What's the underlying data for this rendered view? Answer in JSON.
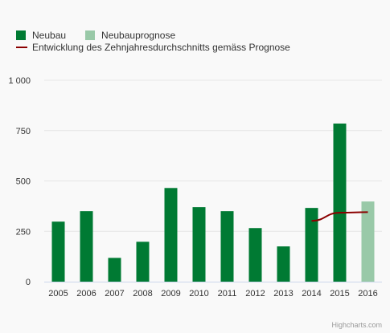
{
  "legend": {
    "neubau": "Neubau",
    "prognose": "Neubauprognose",
    "trend": "Entwicklung des Zehnjahresdurchschnitts gemäss Prognose"
  },
  "credits": "Highcharts.com",
  "colors": {
    "bar": "#007a33",
    "forecast": "#99c9a8",
    "trend": "#8b0000",
    "grid": "#e6e6e6",
    "axis_text": "#333333"
  },
  "chart_data": {
    "type": "bar",
    "categories": [
      "2005",
      "2006",
      "2007",
      "2008",
      "2009",
      "2010",
      "2011",
      "2012",
      "2013",
      "2014",
      "2015",
      "2016"
    ],
    "series": [
      {
        "name": "Neubau",
        "type": "bar",
        "values": [
          298,
          350,
          118,
          198,
          465,
          370,
          350,
          266,
          175,
          366,
          785,
          null
        ]
      },
      {
        "name": "Neubauprognose",
        "type": "bar",
        "values": [
          null,
          null,
          null,
          null,
          null,
          null,
          null,
          null,
          null,
          null,
          null,
          398
        ]
      },
      {
        "name": "Entwicklung des Zehnjahresdurchschnitts gemäss Prognose",
        "type": "line",
        "values": [
          null,
          null,
          null,
          null,
          null,
          null,
          null,
          null,
          null,
          302,
          342,
          345
        ]
      }
    ],
    "ylim": [
      0,
      1000
    ],
    "yticks": [
      0,
      250,
      500,
      750,
      1000
    ],
    "ytick_labels": [
      "0",
      "250",
      "500",
      "750",
      "1 000"
    ],
    "grid": true,
    "legend_position": "top-left"
  }
}
